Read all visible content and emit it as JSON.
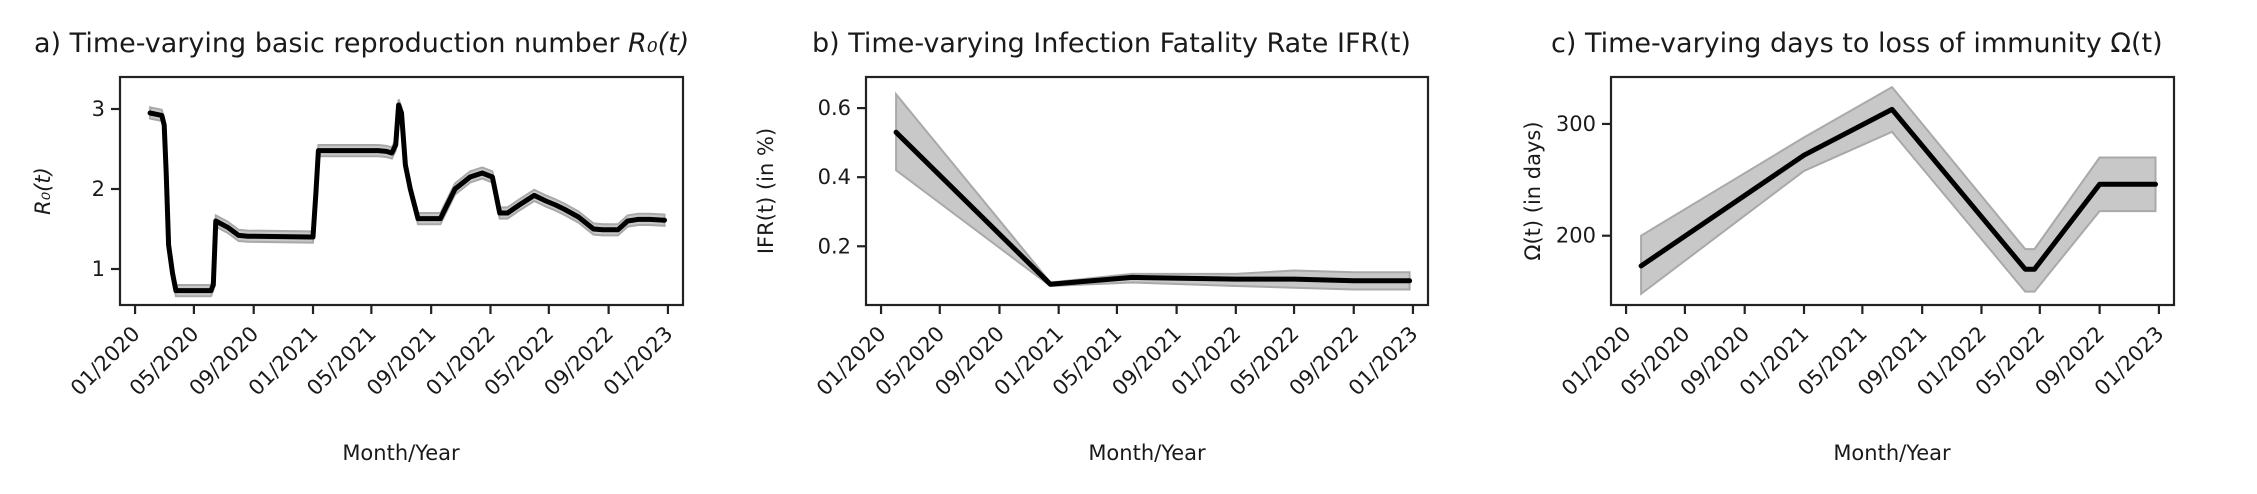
{
  "chart_data": [
    {
      "type": "line",
      "title": "a) Time-varying basic reproduction number R₀(t)",
      "title_plain": "a) Time-varying basic reproduction number ",
      "title_math": "R₀(t)",
      "xlabel": "Month/Year",
      "ylabel": "R₀(t)",
      "x_ticks": [
        "01/2020",
        "05/2020",
        "09/2020",
        "01/2021",
        "05/2021",
        "09/2021",
        "01/2022",
        "05/2022",
        "09/2022",
        "01/2023"
      ],
      "y_ticks": [
        1,
        2,
        3
      ],
      "xlim": [
        "2019-12-01",
        "2023-02-01"
      ],
      "ylim": [
        0.55,
        3.4
      ],
      "band_halfwidth": 0.07,
      "series": [
        {
          "x": [
            "2020-02-01",
            "2020-02-25",
            "2020-03-01",
            "2020-03-05",
            "2020-03-10",
            "2020-03-18",
            "2020-03-25",
            "2020-05-15",
            "2020-06-05",
            "2020-06-10",
            "2020-06-15",
            "2020-07-10",
            "2020-08-01",
            "2020-08-20",
            "2020-12-25",
            "2021-01-01",
            "2021-01-07",
            "2021-01-12",
            "2021-05-15",
            "2021-06-01",
            "2021-06-12",
            "2021-06-20",
            "2021-06-26",
            "2021-07-02",
            "2021-07-10",
            "2021-07-20",
            "2021-08-05",
            "2021-09-01",
            "2021-09-20",
            "2021-10-20",
            "2021-11-20",
            "2021-12-15",
            "2022-01-05",
            "2022-01-20",
            "2022-02-05",
            "2022-03-01",
            "2022-04-01",
            "2022-04-25",
            "2022-05-15",
            "2022-06-01",
            "2022-07-01",
            "2022-08-01",
            "2022-08-20",
            "2022-09-20",
            "2022-10-10",
            "2022-11-01",
            "2022-11-25",
            "2022-12-25"
          ],
          "y": [
            2.95,
            2.92,
            2.8,
            2.2,
            1.3,
            0.95,
            0.73,
            0.73,
            0.73,
            0.8,
            1.6,
            1.52,
            1.42,
            1.41,
            1.4,
            1.4,
            1.95,
            2.48,
            2.48,
            2.47,
            2.45,
            2.55,
            3.05,
            2.95,
            2.3,
            2.0,
            1.63,
            1.63,
            1.63,
            2.0,
            2.15,
            2.2,
            2.15,
            1.7,
            1.7,
            1.8,
            1.92,
            1.85,
            1.8,
            1.75,
            1.65,
            1.5,
            1.49,
            1.49,
            1.6,
            1.62,
            1.62,
            1.61
          ]
        }
      ]
    },
    {
      "type": "line",
      "title": "b) Time-varying Infection Fatality Rate IFR(t)",
      "xlabel": "Month/Year",
      "ylabel": "IFR(t) (in %)",
      "x_ticks": [
        "01/2020",
        "05/2020",
        "09/2020",
        "01/2021",
        "05/2021",
        "09/2021",
        "01/2022",
        "05/2022",
        "09/2022",
        "01/2023"
      ],
      "y_ticks": [
        0.2,
        0.4,
        0.6
      ],
      "xlim": [
        "2019-12-01",
        "2023-02-01"
      ],
      "ylim": [
        0.03,
        0.69
      ],
      "series": [
        {
          "x": [
            "2020-02-01",
            "2020-12-15",
            "2021-06-01",
            "2022-01-01",
            "2022-05-01",
            "2022-09-01",
            "2022-12-25"
          ],
          "y": [
            0.53,
            0.09,
            0.11,
            0.105,
            0.105,
            0.1,
            0.1
          ],
          "lower": [
            0.42,
            0.085,
            0.095,
            0.085,
            0.08,
            0.075,
            0.075
          ],
          "upper": [
            0.64,
            0.095,
            0.12,
            0.12,
            0.13,
            0.125,
            0.125
          ]
        }
      ]
    },
    {
      "type": "line",
      "title": "c) Time-varying days to loss of immunity Ω(t)",
      "title_plain": "c) Time-varying days to loss of immunity ",
      "title_math": "Ω(t)",
      "xlabel": "Month/Year",
      "ylabel": "Ω(t) (in days)",
      "x_ticks": [
        "01/2020",
        "05/2020",
        "09/2020",
        "01/2021",
        "05/2021",
        "09/2021",
        "01/2022",
        "05/2022",
        "09/2022",
        "01/2023"
      ],
      "y_ticks": [
        200,
        300
      ],
      "xlim": [
        "2019-12-01",
        "2023-02-01"
      ],
      "ylim": [
        138,
        342
      ],
      "series": [
        {
          "x": [
            "2020-02-01",
            "2021-01-01",
            "2021-07-01",
            "2022-04-01",
            "2022-04-20",
            "2022-09-01",
            "2022-12-25"
          ],
          "y": [
            173,
            272,
            313,
            170,
            170,
            246,
            246
          ],
          "lower": [
            148,
            258,
            293,
            150,
            150,
            222,
            222
          ],
          "upper": [
            200,
            288,
            333,
            188,
            188,
            270,
            270
          ]
        }
      ]
    }
  ]
}
